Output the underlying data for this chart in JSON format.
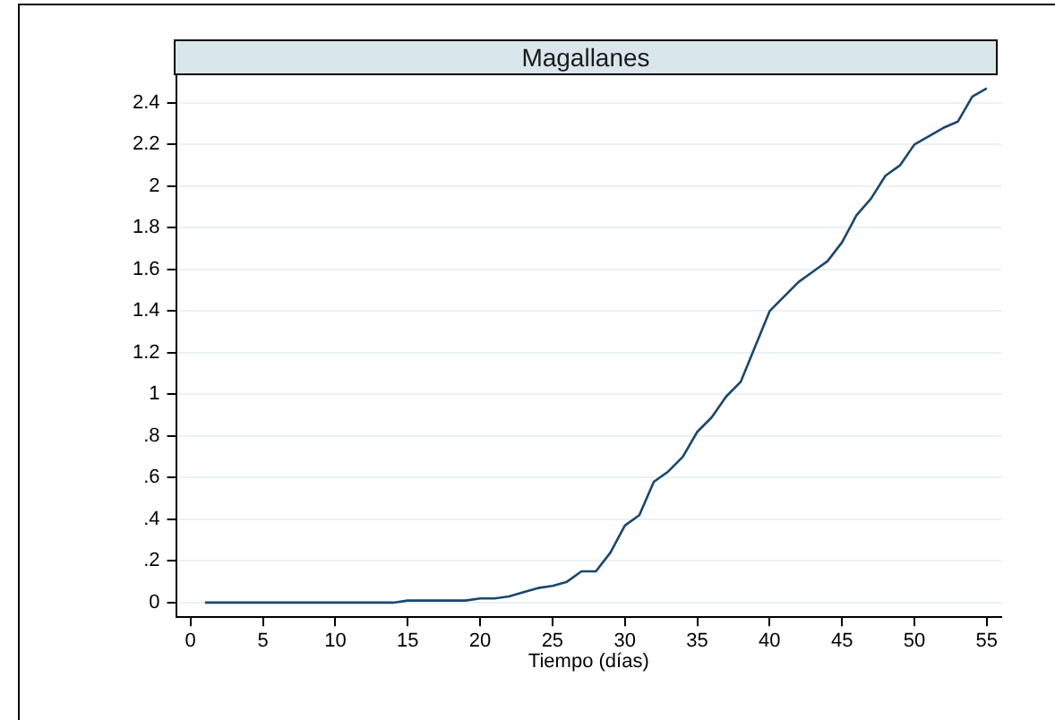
{
  "chart_data": {
    "type": "line",
    "title": "Magallanes",
    "xlabel": "Tiempo (días)",
    "x": [
      1,
      2,
      3,
      4,
      5,
      6,
      7,
      8,
      9,
      10,
      11,
      12,
      13,
      14,
      15,
      16,
      17,
      18,
      19,
      20,
      21,
      22,
      23,
      24,
      25,
      26,
      27,
      28,
      29,
      30,
      31,
      32,
      33,
      34,
      35,
      36,
      37,
      38,
      39,
      40,
      41,
      42,
      43,
      44,
      45,
      46,
      47,
      48,
      49,
      50,
      51,
      52,
      53,
      54,
      55
    ],
    "series": [
      {
        "color": "#1a476f",
        "values": [
          0,
          0,
          0,
          0,
          0,
          0,
          0,
          0,
          0,
          0,
          0,
          0,
          0,
          0,
          0.01,
          0.01,
          0.01,
          0.01,
          0.01,
          0.02,
          0.02,
          0.03,
          0.05,
          0.07,
          0.08,
          0.1,
          0.15,
          0.15,
          0.24,
          0.37,
          0.42,
          0.58,
          0.63,
          0.7,
          0.82,
          0.89,
          0.99,
          1.06,
          1.23,
          1.4,
          1.47,
          1.54,
          1.59,
          1.64,
          1.73,
          1.86,
          1.94,
          2.05,
          2.1,
          2.2,
          2.24,
          2.28,
          2.31,
          2.43,
          2.47
        ]
      }
    ],
    "xlim": [
      -1,
      56
    ],
    "xticks": [
      0,
      5,
      10,
      15,
      20,
      25,
      30,
      35,
      40,
      45,
      50,
      55
    ],
    "ylim": [
      -0.07,
      2.55
    ],
    "yticks": [
      0,
      {
        "value": 0.2,
        "label": ".2"
      },
      {
        "value": 0.4,
        "label": ".4"
      },
      {
        "value": 0.6,
        "label": ".6"
      },
      {
        "value": 0.8,
        "label": ".8"
      },
      1,
      1.2,
      1.4,
      1.6,
      1.8,
      2,
      2.2,
      2.4
    ],
    "grid": "y",
    "legend": false,
    "marker": "none",
    "line_style": "solid"
  }
}
